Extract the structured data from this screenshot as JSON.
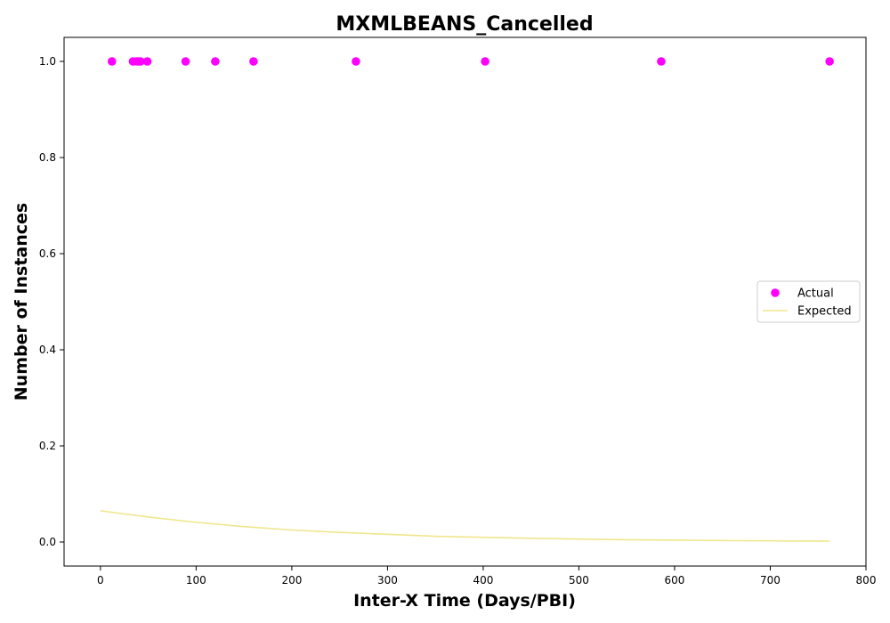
{
  "chart_data": {
    "type": "scatter",
    "title": "MXMLBEANS_Cancelled",
    "xlabel": "Inter-X Time (Days/PBI)",
    "ylabel": "Number of Instances",
    "xlim": [
      -38,
      800
    ],
    "ylim": [
      -0.05,
      1.05
    ],
    "xticks": [
      0,
      100,
      200,
      300,
      400,
      500,
      600,
      700,
      800
    ],
    "yticks": [
      0.0,
      0.2,
      0.4,
      0.6,
      0.8,
      1.0
    ],
    "xtick_labels": [
      "0",
      "100",
      "200",
      "300",
      "400",
      "500",
      "600",
      "700",
      "800"
    ],
    "ytick_labels": [
      "0.0",
      "0.2",
      "0.4",
      "0.6",
      "0.8",
      "1.0"
    ],
    "grid": false,
    "legend_position": "center-right",
    "series": [
      {
        "name": "Actual",
        "kind": "scatter",
        "color": "#ff00ff",
        "x": [
          12,
          34,
          38,
          40,
          42,
          49,
          89,
          120,
          160,
          267,
          402,
          586,
          762
        ],
        "y": [
          1,
          1,
          1,
          1,
          1,
          1,
          1,
          1,
          1,
          1,
          1,
          1,
          1
        ]
      },
      {
        "name": "Expected",
        "kind": "line",
        "color": "#f0e68c",
        "x": [
          0,
          50,
          100,
          150,
          200,
          250,
          300,
          350,
          400,
          450,
          500,
          550,
          600,
          650,
          700,
          762
        ],
        "y": [
          0.065,
          0.052,
          0.041,
          0.032,
          0.025,
          0.02,
          0.016,
          0.012,
          0.0098,
          0.0077,
          0.0061,
          0.0048,
          0.0038,
          0.003,
          0.0024,
          0.0018
        ]
      }
    ]
  }
}
